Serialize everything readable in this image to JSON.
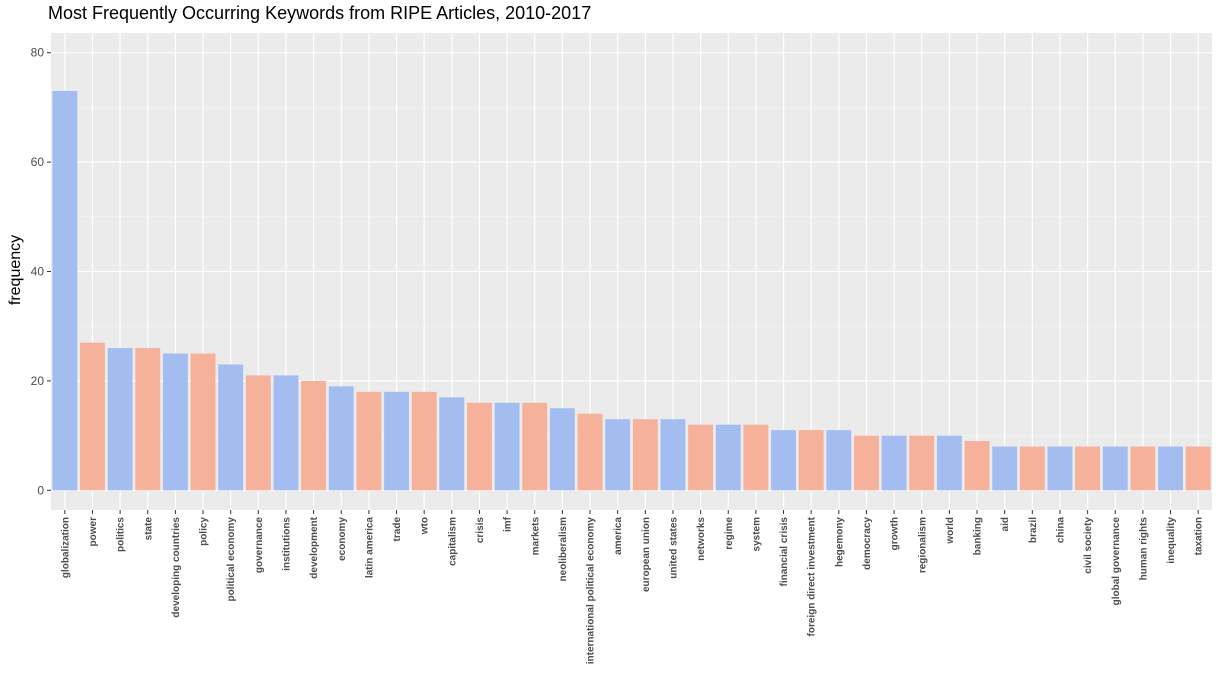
{
  "chart_data": {
    "type": "bar",
    "title": "Most Frequently Occurring Keywords from RIPE Articles, 2010-2017",
    "xlabel": "",
    "ylabel": "frequency",
    "ylim": [
      -3.6,
      83.6
    ],
    "yticks": [
      0,
      20,
      40,
      60,
      80
    ],
    "grid": true,
    "legend": "none",
    "colors": [
      "#a4bdf0",
      "#f5b19a"
    ],
    "panel_background": "#ebebeb",
    "categories": [
      "globalization",
      "power",
      "politics",
      "state",
      "developing countries",
      "policy",
      "political economy",
      "governance",
      "institutions",
      "development",
      "economy",
      "latin america",
      "trade",
      "wto",
      "capitalism",
      "crisis",
      "imf",
      "markets",
      "neoliberalism",
      "international political economy",
      "america",
      "european union",
      "united states",
      "networks",
      "regime",
      "system",
      "financial crisis",
      "foreign direct investment",
      "hegemony",
      "democracy",
      "growth",
      "regionalism",
      "world",
      "banking",
      "aid",
      "brazil",
      "china",
      "civil society",
      "global governance",
      "human rights",
      "inequality",
      "taxation"
    ],
    "values": [
      73,
      27,
      26,
      26,
      25,
      25,
      23,
      21,
      21,
      20,
      19,
      18,
      18,
      18,
      17,
      16,
      16,
      16,
      15,
      14,
      13,
      13,
      13,
      12,
      12,
      12,
      11,
      11,
      11,
      10,
      10,
      10,
      10,
      9,
      8,
      8,
      8,
      8,
      8,
      8,
      8,
      8
    ]
  }
}
